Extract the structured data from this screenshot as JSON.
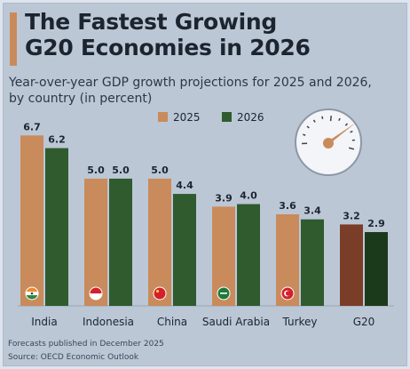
{
  "title_line1": "The Fastest Growing",
  "title_line2": "G20 Economies in 2026",
  "subtitle_line1": "Year-over-year GDP growth projections for 2025 and 2026,",
  "subtitle_line2": "by country (in percent)",
  "footer": {
    "note": "Forecasts published in December 2025",
    "source": "Source: OECD Economic Outlook"
  },
  "colors": {
    "s2025": "#c98b5b",
    "s2026": "#2f5b2e",
    "g20_2025": "#7a3d27",
    "g20_2026": "#1b3a1c",
    "accent": "#c98b5b",
    "background": "#bcc7d6"
  },
  "chart_data": {
    "type": "bar",
    "title": "The Fastest Growing G20 Economies in 2026",
    "subtitle": "Year-over-year GDP growth projections for 2025 and 2026, by country (in percent)",
    "categories": [
      "India",
      "Indonesia",
      "China",
      "Saudi Arabia",
      "Turkey",
      "G20"
    ],
    "series": [
      {
        "name": "2025",
        "values": [
          6.7,
          5.0,
          5.0,
          3.9,
          3.6,
          3.2
        ]
      },
      {
        "name": "2026",
        "values": [
          6.2,
          5.0,
          4.4,
          4.0,
          3.4,
          2.9
        ]
      }
    ],
    "value_labels": [
      [
        "6.7",
        "5.0",
        "5.0",
        "3.9",
        "3.6",
        "3.2"
      ],
      [
        "6.2",
        "5.0",
        "4.4",
        "4.0",
        "3.4",
        "2.9"
      ]
    ],
    "ylim": [
      0,
      7
    ],
    "grid": false,
    "legend": "top-right",
    "flag_icons": [
      "india-flag-icon",
      "indonesia-flag-icon",
      "china-flag-icon",
      "saudi-arabia-flag-icon",
      "turkey-flag-icon",
      ""
    ],
    "decoration_icon": "speedometer-gauge-icon"
  }
}
